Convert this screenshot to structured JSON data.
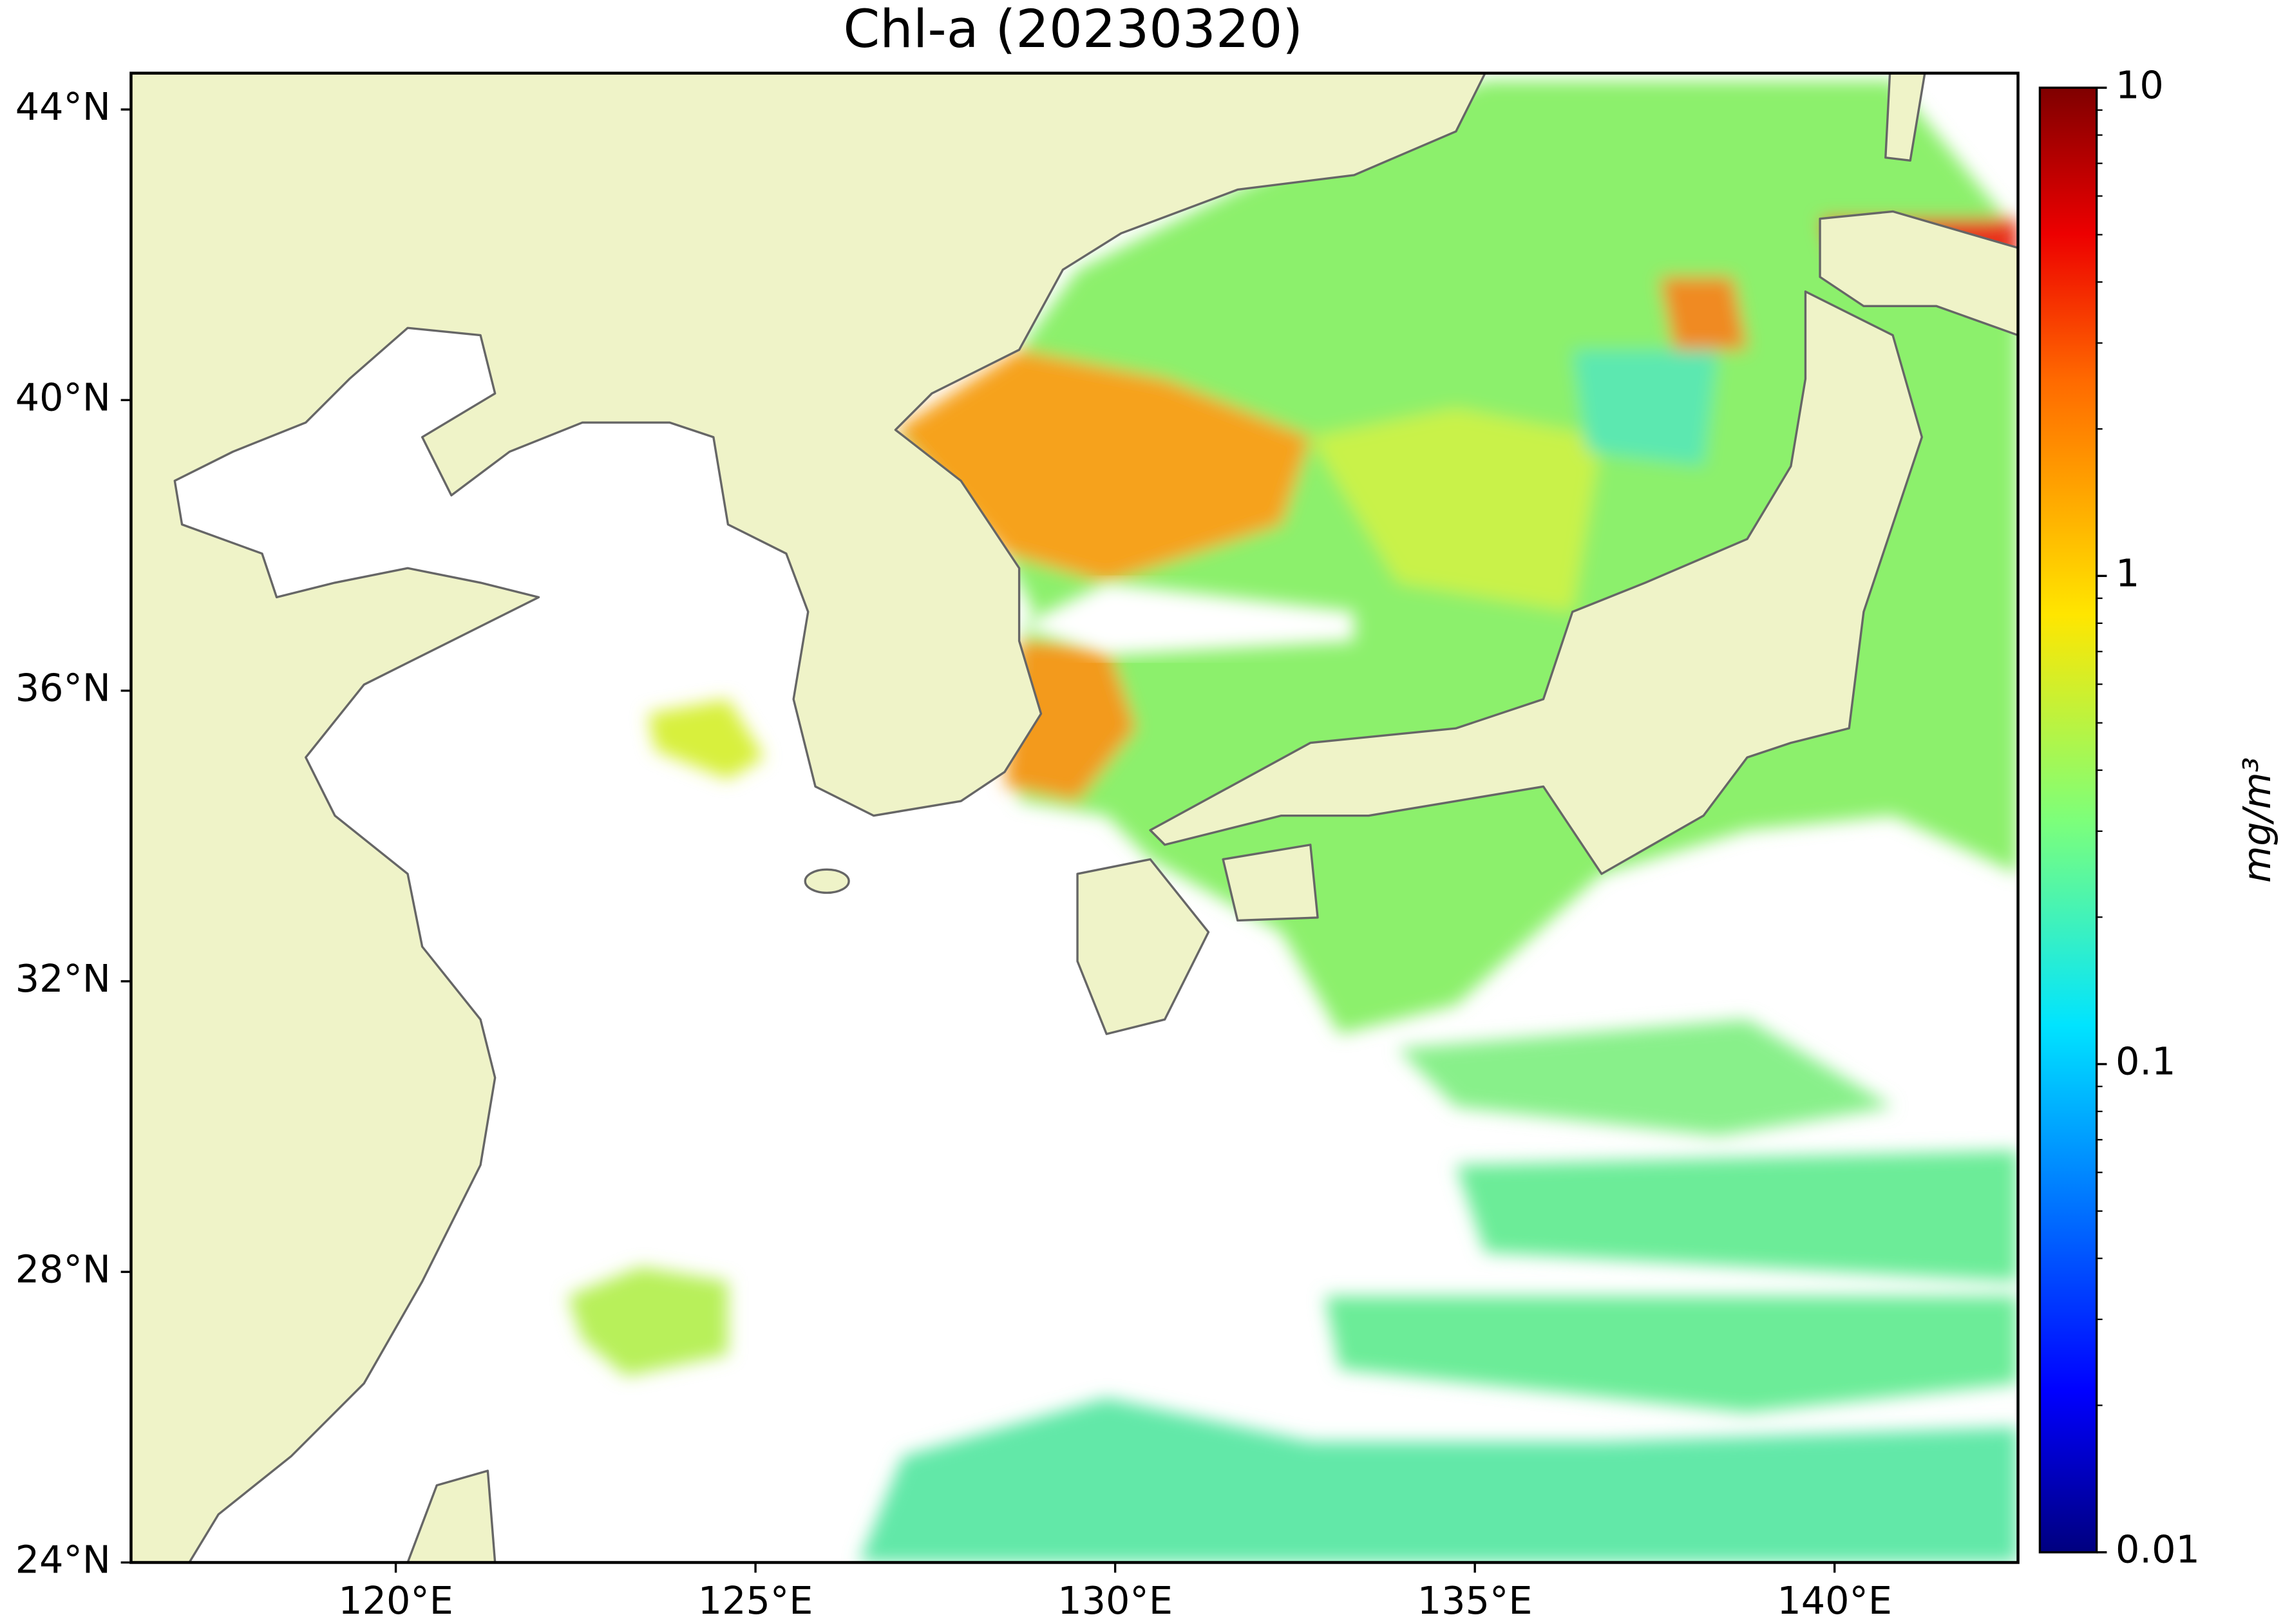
{
  "chart_data": {
    "type": "map",
    "title": "Chl-a (20230320)",
    "xlim": [
      116.32,
      142.55
    ],
    "ylim": [
      24,
      44.5
    ],
    "xticks": [
      {
        "value": 120,
        "label": "120°E"
      },
      {
        "value": 125,
        "label": "125°E"
      },
      {
        "value": 130,
        "label": "130°E"
      },
      {
        "value": 135,
        "label": "135°E"
      },
      {
        "value": 140,
        "label": "140°E"
      }
    ],
    "yticks": [
      {
        "value": 24,
        "label": "24°N"
      },
      {
        "value": 28,
        "label": "28°N"
      },
      {
        "value": 32,
        "label": "32°N"
      },
      {
        "value": 36,
        "label": "36°N"
      },
      {
        "value": 40,
        "label": "40°N"
      },
      {
        "value": 44,
        "label": "44°N"
      }
    ],
    "colorbar": {
      "label": "mg/m³",
      "range": [
        0.01,
        10
      ],
      "log": true,
      "ticks": [
        0.01,
        0.1,
        1,
        10
      ]
    }
  }
}
